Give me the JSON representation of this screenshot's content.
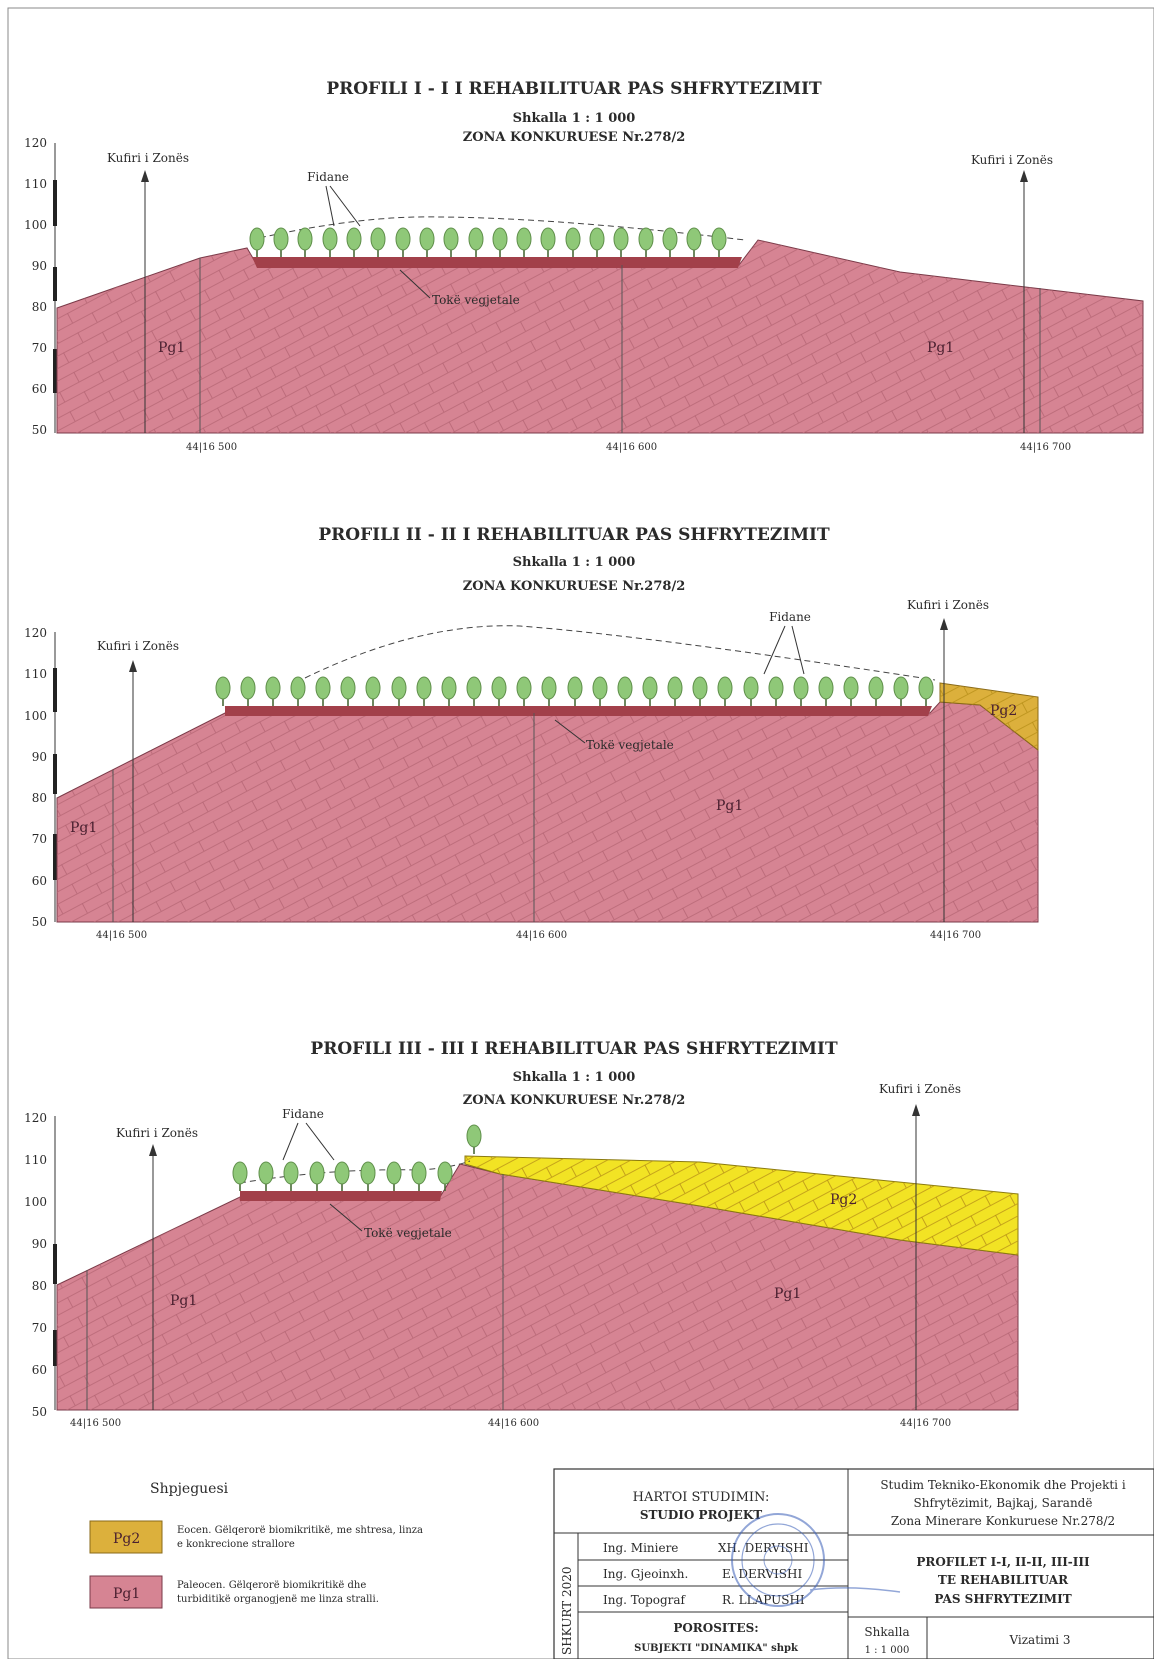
{
  "colors": {
    "pg1_fill": "#d68493",
    "pg2_fill": "#dcb03c",
    "pg2_fill_bright": "#f2e324",
    "soil": "#a2404a",
    "tree": "#8fc878",
    "tree_trunk": "#4a6a38"
  },
  "profiles": [
    {
      "title": "PROFILI  I - I  I REHABILITUAR PAS SHFRYTEZIMIT",
      "scale": "Shkalla 1 : 1 000",
      "zone": "ZONA KONKURUESE Nr.278/2",
      "y_ticks": [
        "120",
        "110",
        "100",
        "90",
        "80",
        "70",
        "60",
        "50"
      ],
      "eastings": [
        "44|16 500",
        "44|16 600",
        "44|16 700"
      ],
      "boundary_left": "Kufiri i Zonës",
      "boundary_right": "Kufiri i Zonës",
      "seedlings_label": "Fidane",
      "soil_label": "Tokë vegjetale",
      "rock_left": "Pg1",
      "rock_right": "Pg1"
    },
    {
      "title": "PROFILI  II - II  I REHABILITUAR PAS SHFRYTEZIMIT",
      "scale": "Shkalla 1 : 1 000",
      "zone": "ZONA KONKURUESE Nr.278/2",
      "y_ticks": [
        "120",
        "110",
        "100",
        "90",
        "80",
        "70",
        "60",
        "50"
      ],
      "eastings": [
        "44|16 500",
        "44|16 600",
        "44|16 700"
      ],
      "boundary_left": "Kufiri i Zonës",
      "boundary_right": "Kufiri i Zonës",
      "seedlings_label": "Fidane",
      "soil_label": "Tokë vegjetale",
      "rock_left": "Pg1",
      "rock_center": "Pg1",
      "rock_pg2": "Pg2"
    },
    {
      "title": "PROFILI  III - III  I REHABILITUAR PAS SHFRYTEZIMIT",
      "scale": "Shkalla 1 : 1 000",
      "zone": "ZONA KONKURUESE Nr.278/2",
      "y_ticks": [
        "120",
        "110",
        "100",
        "90",
        "80",
        "70",
        "60",
        "50"
      ],
      "eastings": [
        "44|16 500",
        "44|16 600",
        "44|16 700"
      ],
      "boundary_left": "Kufiri i Zonës",
      "boundary_right": "Kufiri i Zonës",
      "seedlings_label": "Fidane",
      "soil_label": "Tokë vegjetale",
      "rock_left": "Pg1",
      "rock_right": "Pg1",
      "rock_pg2": "Pg2"
    }
  ],
  "legend": {
    "title": "Shpjeguesi",
    "items": [
      {
        "symbol": "Pg2",
        "line1": "Eocen. Gëlqerorë biomikritikë, me shtresa, linza",
        "line2": "e konkrecione strallore"
      },
      {
        "symbol": "Pg1",
        "line1": "Paleocen. Gëlqerorë biomikritikë dhe",
        "line2": "turbiditikë organogjenë me linza stralli."
      }
    ]
  },
  "title_block": {
    "prepared_label": "HARTOI STUDIMIN:",
    "studio": "STUDIO PROJEKT",
    "vertical_date": "SHKURT 2020",
    "people": [
      {
        "role": "Ing. Miniere",
        "name": "XH. DERVISHI"
      },
      {
        "role": "Ing. Gjeoinxh.",
        "name": "E. DERVISHI"
      },
      {
        "role": "Ing. Topograf",
        "name": "R. LLAPUSHI"
      }
    ],
    "client_label": "POROSITES:",
    "client": "SUBJEKTI \"DINAMIKA\" shpk",
    "study_line1": "Studim Tekniko-Ekonomik dhe Projekti i",
    "study_line2": "Shfrytëzimit, Bajkaj, Sarandë",
    "study_line3": "Zona Minerare Konkuruese Nr.278/2",
    "drawing_line1": "PROFILET  I-I, II-II, III-III",
    "drawing_line2": "TE REHABILITUAR",
    "drawing_line3": "PAS SHFRYTEZIMIT",
    "scale_label": "Shkalla",
    "scale_value": "1 : 1 000",
    "sheet_label": "Vizatimi  3"
  }
}
